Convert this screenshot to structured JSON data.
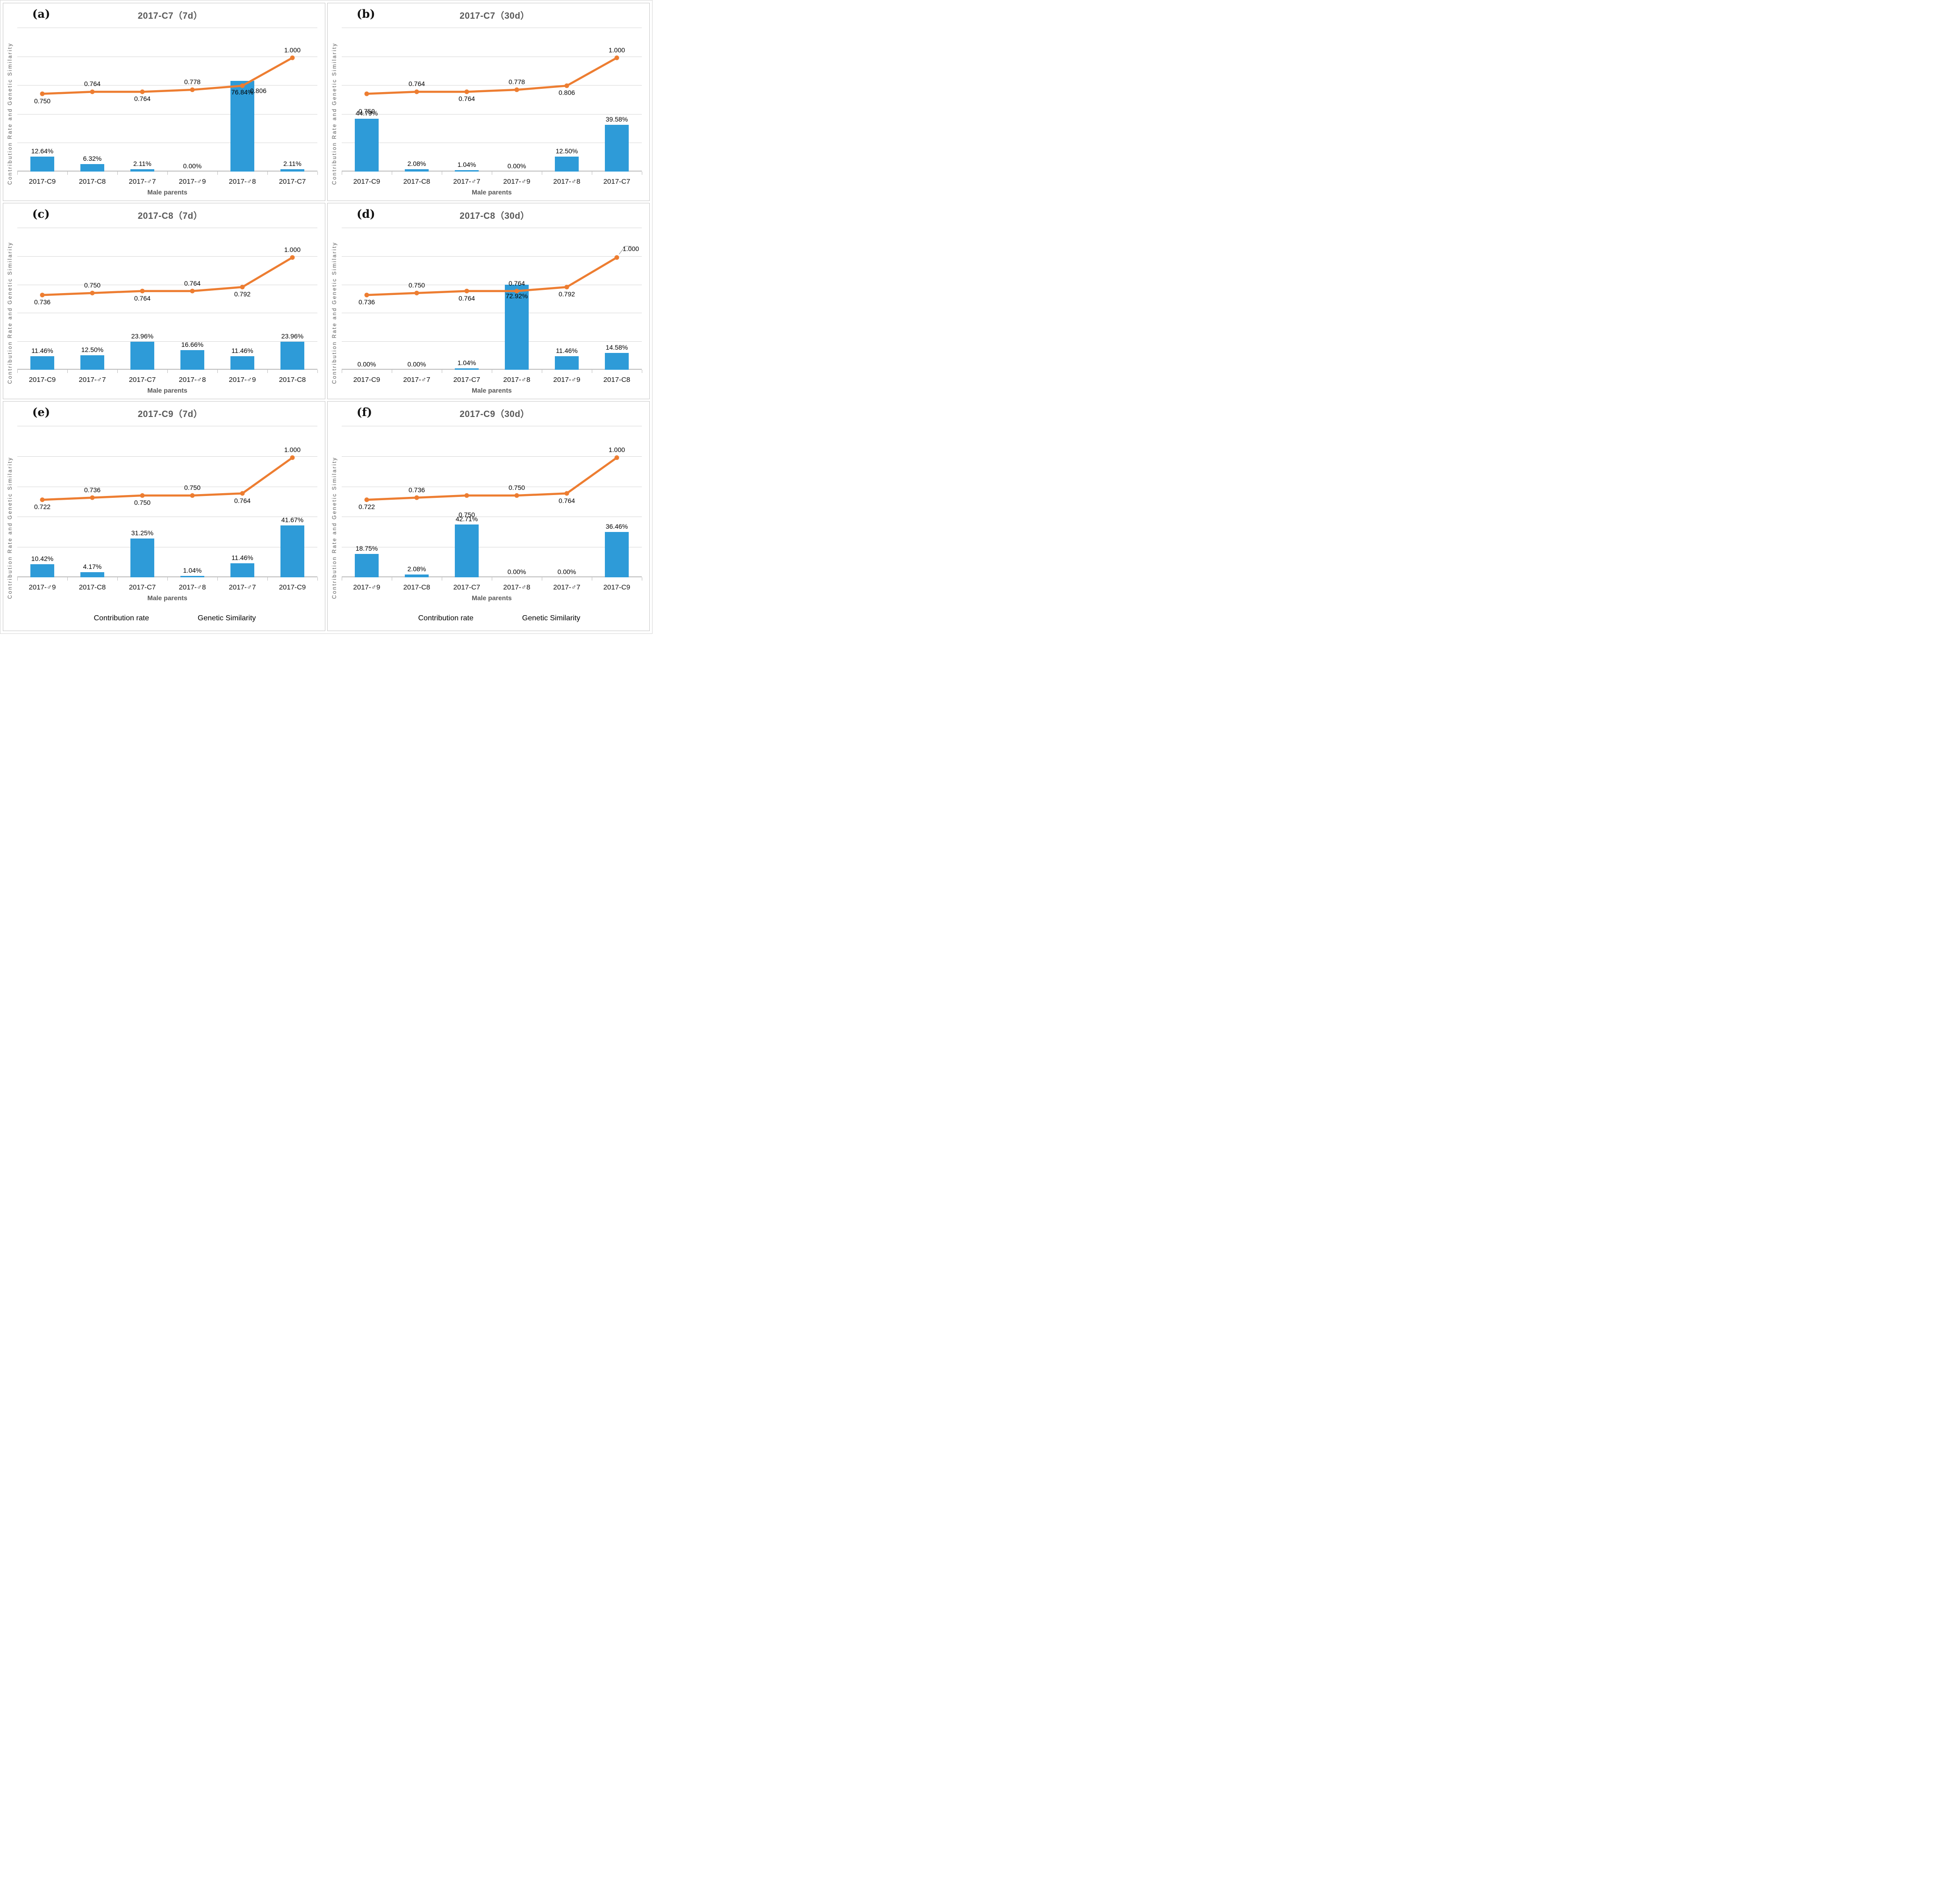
{
  "page": {
    "colors": {
      "bar": "#2E9BD8",
      "line": "#ED7D31",
      "grid": "#D9D9D9",
      "axis": "#C0C0C0",
      "title_text": "#595959",
      "label_text": "#000000",
      "leader": "#8C8C8C"
    },
    "ylabel": "Contribution Rate and Genetic Similarity",
    "xlabel": "Male parents",
    "legend": {
      "bar": "Contribution rate",
      "line": "Genetic Similarity"
    }
  },
  "chart_data": [
    {
      "id": "a",
      "letter": "(a)",
      "type": "combo",
      "title": "2017-C7（7d）",
      "xlabel": "Male parents",
      "ylabel": "Contribution Rate and Genetic Similarity",
      "axes_hidden": true,
      "grid": true,
      "legend_visible": false,
      "categories": [
        "2017-C9",
        "2017-C8",
        "2017-♂7",
        "2017-♂9",
        "2017-♂8",
        "2017-C7"
      ],
      "series": [
        {
          "name": "Contribution rate",
          "type": "bar",
          "unit": "%",
          "values": [
            12.64,
            6.32,
            2.11,
            0.0,
            76.84,
            2.11
          ],
          "labels": [
            "12.64%",
            "6.32%",
            "2.11%",
            "0.00%",
            "76.84%",
            "2.11%"
          ]
        },
        {
          "name": "Genetic Similarity",
          "type": "line",
          "values": [
            0.75,
            0.764,
            0.764,
            0.778,
            0.806,
            1.0
          ],
          "labels": [
            "0.750",
            "0.764",
            "0.764",
            "0.778",
            "0.806",
            "1.000"
          ]
        }
      ]
    },
    {
      "id": "b",
      "letter": "(b)",
      "type": "combo",
      "title": "2017-C7（30d）",
      "xlabel": "Male parents",
      "ylabel": "Contribution Rate and Genetic Similarity",
      "axes_hidden": true,
      "grid": true,
      "legend_visible": false,
      "categories": [
        "2017-C9",
        "2017-C8",
        "2017-♂7",
        "2017-♂9",
        "2017-♂8",
        "2017-C7"
      ],
      "series": [
        {
          "name": "Contribution rate",
          "type": "bar",
          "unit": "%",
          "values": [
            44.79,
            2.08,
            1.04,
            0.0,
            12.5,
            39.58
          ],
          "labels": [
            "44.79%",
            "2.08%",
            "1.04%",
            "0.00%",
            "12.50%",
            "39.58%"
          ]
        },
        {
          "name": "Genetic Similarity",
          "type": "line",
          "values": [
            0.75,
            0.764,
            0.764,
            0.778,
            0.806,
            1.0
          ],
          "labels": [
            "0.750",
            "0.764",
            "0.764",
            "0.778",
            "0.806",
            "1.000"
          ]
        }
      ]
    },
    {
      "id": "c",
      "letter": "(c)",
      "type": "combo",
      "title": "2017-C8（7d）",
      "xlabel": "Male parents",
      "ylabel": "Contribution Rate and Genetic Similarity",
      "axes_hidden": true,
      "grid": true,
      "legend_visible": false,
      "categories": [
        "2017-C9",
        "2017-♂7",
        "2017-C7",
        "2017-♂8",
        "2017-♂9",
        "2017-C8"
      ],
      "series": [
        {
          "name": "Contribution rate",
          "type": "bar",
          "unit": "%",
          "values": [
            11.46,
            12.5,
            23.96,
            16.66,
            11.46,
            23.96
          ],
          "labels": [
            "11.46%",
            "12.50%",
            "23.96%",
            "16.66%",
            "11.46%",
            "23.96%"
          ]
        },
        {
          "name": "Genetic Similarity",
          "type": "line",
          "values": [
            0.736,
            0.75,
            0.764,
            0.764,
            0.792,
            1.0
          ],
          "labels": [
            "0.736",
            "0.750",
            "0.764",
            "0.764",
            "0.792",
            "1.000"
          ]
        }
      ]
    },
    {
      "id": "d",
      "letter": "(d)",
      "type": "combo",
      "title": "2017-C8（30d）",
      "xlabel": "Male parents",
      "ylabel": "Contribution Rate and Genetic Similarity",
      "axes_hidden": true,
      "grid": true,
      "legend_visible": false,
      "leader_on_last_line_label": true,
      "categories": [
        "2017-C9",
        "2017-♂7",
        "2017-C7",
        "2017-♂8",
        "2017-♂9",
        "2017-C8"
      ],
      "series": [
        {
          "name": "Contribution rate",
          "type": "bar",
          "unit": "%",
          "values": [
            0.0,
            0.0,
            1.04,
            72.92,
            11.46,
            14.58
          ],
          "labels": [
            "0.00%",
            "0.00%",
            "1.04%",
            "72.92%",
            "11.46%",
            "14.58%"
          ]
        },
        {
          "name": "Genetic Similarity",
          "type": "line",
          "values": [
            0.736,
            0.75,
            0.764,
            0.764,
            0.792,
            1.0
          ],
          "labels": [
            "0.736",
            "0.750",
            "0.764",
            "0.764",
            "0.792",
            "1.000"
          ]
        }
      ]
    },
    {
      "id": "e",
      "letter": "(e)",
      "type": "combo",
      "title": "2017-C9（7d）",
      "xlabel": "Male parents",
      "ylabel": "Contribution Rate and Genetic Similarity",
      "axes_hidden": true,
      "grid": true,
      "legend_visible": true,
      "categories": [
        "2017-♂9",
        "2017-C8",
        "2017-C7",
        "2017-♂8",
        "2017-♂7",
        "2017-C9"
      ],
      "series": [
        {
          "name": "Contribution rate",
          "type": "bar",
          "unit": "%",
          "values": [
            10.42,
            4.17,
            31.25,
            1.04,
            11.46,
            41.67
          ],
          "labels": [
            "10.42%",
            "4.17%",
            "31.25%",
            "1.04%",
            "11.46%",
            "41.67%"
          ]
        },
        {
          "name": "Genetic Similarity",
          "type": "line",
          "values": [
            0.722,
            0.736,
            0.75,
            0.75,
            0.764,
            1.0
          ],
          "labels": [
            "0.722",
            "0.736",
            "0.750",
            "0.750",
            "0.764",
            "1.000"
          ]
        }
      ]
    },
    {
      "id": "f",
      "letter": "(f)",
      "type": "combo",
      "title": "2017-C9（30d）",
      "xlabel": "Male parents",
      "ylabel": "Contribution Rate and Genetic Similarity",
      "axes_hidden": true,
      "grid": true,
      "legend_visible": true,
      "categories": [
        "2017-♂9",
        "2017-C8",
        "2017-C7",
        "2017-♂8",
        "2017-♂7",
        "2017-C9"
      ],
      "series": [
        {
          "name": "Contribution rate",
          "type": "bar",
          "unit": "%",
          "values": [
            18.75,
            2.08,
            42.71,
            0.0,
            0.0,
            36.46
          ],
          "labels": [
            "18.75%",
            "2.08%",
            "42.71%",
            "0.00%",
            "0.00%",
            "36.46%"
          ]
        },
        {
          "name": "Genetic Similarity",
          "type": "line",
          "values": [
            0.722,
            0.736,
            0.75,
            0.75,
            0.764,
            1.0
          ],
          "labels": [
            "0.722",
            "0.736",
            "0.750",
            "0.750",
            "0.764",
            "1.000"
          ]
        }
      ]
    }
  ]
}
